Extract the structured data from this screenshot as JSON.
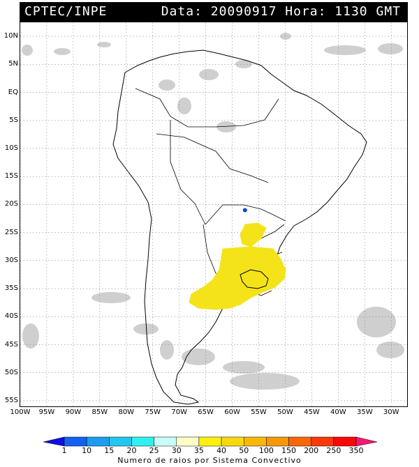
{
  "header": {
    "title": "CPTEC/INPE",
    "datetime": "Data: 20090917 Hora: 1130 GMT"
  },
  "map": {
    "lat_labels": [
      "10N",
      "5N",
      "EQ",
      "5S",
      "10S",
      "15S",
      "20S",
      "25S",
      "30S",
      "35S",
      "40S",
      "45S",
      "50S",
      "55S"
    ],
    "lat_values": [
      10,
      5,
      0,
      -5,
      -10,
      -15,
      -20,
      -25,
      -30,
      -35,
      -40,
      -45,
      -50,
      -55
    ],
    "lon_labels": [
      "100W",
      "95W",
      "90W",
      "85W",
      "80W",
      "75W",
      "70W",
      "65W",
      "60W",
      "55W",
      "50W",
      "45W",
      "40W",
      "35W",
      "30W"
    ],
    "lon_values": [
      -100,
      -95,
      -90,
      -85,
      -80,
      -75,
      -70,
      -65,
      -60,
      -55,
      -50,
      -45,
      -40,
      -35,
      -30
    ],
    "lon_range": [
      -100,
      -27
    ],
    "lat_range": [
      -56,
      12.5
    ],
    "grid": "dotted",
    "lightning_marker": {
      "lat": -21,
      "lon": -57.6,
      "color": "#1040e0"
    },
    "lightning_area_color": "#f5e31a"
  },
  "legend": {
    "title": "Numero de raios por Sistema Convectivo",
    "labels": [
      "1",
      "10",
      "15",
      "20",
      "25",
      "30",
      "35",
      "40",
      "50",
      "100",
      "150",
      "200",
      "250",
      "350"
    ],
    "colors": [
      "#1010e0",
      "#1460f0",
      "#1c9cf0",
      "#20c8f0",
      "#30f0f0",
      "#c8fcf8",
      "#fffcc8",
      "#fff010",
      "#f8d810",
      "#f8b808",
      "#f89808",
      "#f86808",
      "#f83808",
      "#f80808",
      "#f81870"
    ]
  }
}
